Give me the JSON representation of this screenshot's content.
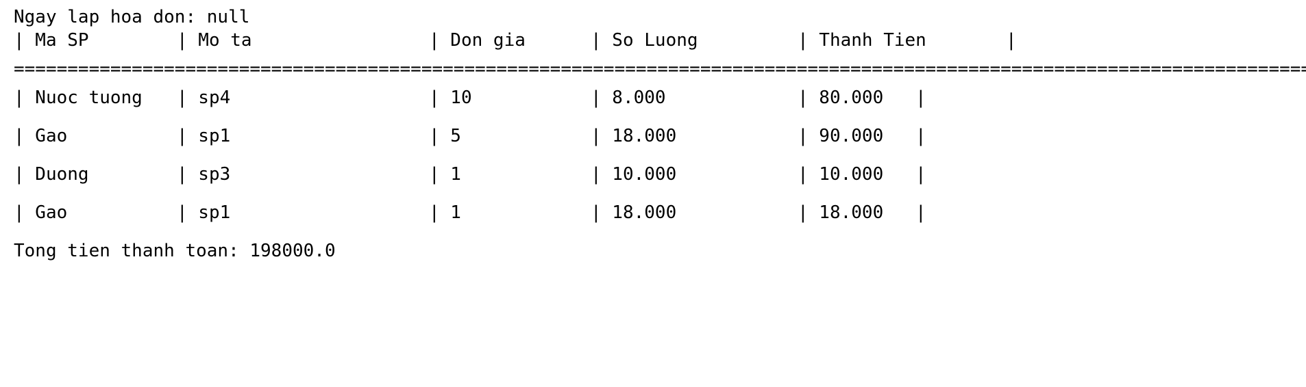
{
  "invoice_date_line": "Ngay lap hoa don: null",
  "header": {
    "cols": [
      "| Ma SP",
      "| Mo ta",
      "| Don gia",
      "| So Luong",
      "| Thanh Tien",
      "|"
    ]
  },
  "separator": "==================================================================================================================================================================================================================================",
  "rows": [
    {
      "ma_sp": "| Nuoc tuong",
      "mo_ta": "| sp4",
      "don_gia": "| 10",
      "so_luong": "| 8.000",
      "thanh_tien": "| 80.000",
      "end": "|"
    },
    {
      "ma_sp": "| Gao",
      "mo_ta": "| sp1",
      "don_gia": "| 5",
      "so_luong": "| 18.000",
      "thanh_tien": "| 90.000",
      "end": "|"
    },
    {
      "ma_sp": "| Duong",
      "mo_ta": "| sp3",
      "don_gia": "| 1",
      "so_luong": "| 10.000",
      "thanh_tien": "| 10.000",
      "end": "|"
    },
    {
      "ma_sp": "| Gao",
      "mo_ta": "| sp1",
      "don_gia": "| 1",
      "so_luong": "| 18.000",
      "thanh_tien": "| 18.000",
      "end": "|"
    }
  ],
  "total_line": "Tong tien thanh toan: 198000.0"
}
